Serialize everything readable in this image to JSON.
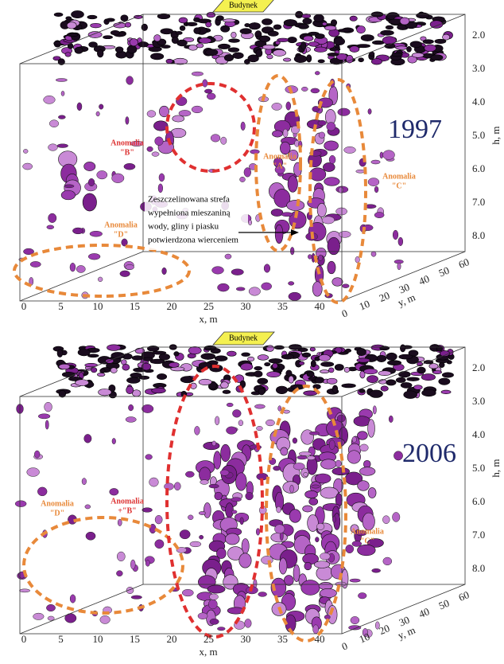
{
  "panels": [
    {
      "year": "1997",
      "building": "Budynek",
      "anomalies": [
        {
          "name": "Anomalia",
          "code": "\"B\""
        },
        {
          "name": "Anomalia",
          "code": "\"D\""
        },
        {
          "name": "Anomalia",
          "code": "\"A\""
        },
        {
          "name": "Anomalia",
          "code": "\"C\""
        }
      ],
      "annotation": [
        "Zeszczelinowana strefa",
        "wypełniona mieszaniną",
        "wody, gliny i piasku",
        "potwierdzona wierceniem"
      ],
      "x_ticks": [
        "0",
        "5",
        "10",
        "15",
        "20",
        "25",
        "30",
        "35",
        "40"
      ],
      "x_label": "x, m",
      "y_ticks": [
        "0",
        "10",
        "20",
        "30",
        "40",
        "50",
        "60"
      ],
      "y_label": "y, m",
      "h_ticks": [
        "2.0",
        "3.0",
        "4.0",
        "5.0",
        "6.0",
        "7.0",
        "8.0"
      ],
      "h_label": "h, m"
    },
    {
      "year": "2006",
      "building": "Budynek",
      "anomalies": [
        {
          "name": "Anomalia",
          "code": "\"D\""
        },
        {
          "name": "Anomalia",
          "code": "+\"B\""
        },
        {
          "name": "Anomalia",
          "code": "\"C\""
        }
      ],
      "annotation": [],
      "x_ticks": [
        "0",
        "5",
        "10",
        "15",
        "20",
        "25",
        "30",
        "35",
        "40"
      ],
      "x_label": "x, m",
      "y_ticks": [
        "0",
        "10",
        "20",
        "30",
        "40",
        "50",
        "60"
      ],
      "y_label": "y, m",
      "h_ticks": [
        "2.0",
        "3.0",
        "4.0",
        "5.0",
        "6.0",
        "7.0",
        "8.0"
      ],
      "h_label": "h, m"
    }
  ]
}
